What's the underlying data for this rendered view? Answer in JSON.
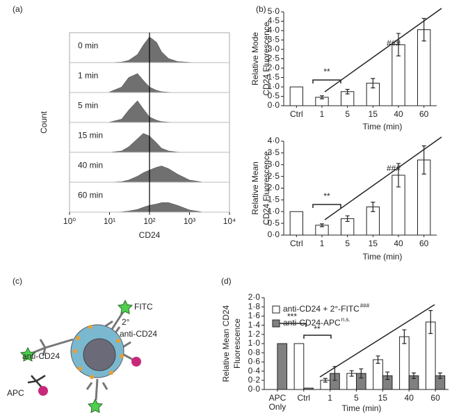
{
  "panels": [
    "(a)",
    "(b)",
    "(c)",
    "(d)"
  ],
  "diagram": {
    "labels": [
      "FITC",
      "2°",
      "anti-CD24",
      "anti-CD24",
      "APC"
    ]
  },
  "chart_data": [
    {
      "type": "ridgeline",
      "xlabel": "CD24",
      "ylabel": "Count",
      "log_x": true,
      "xlim": [
        1,
        10000
      ],
      "xticks": [
        {
          "value": 1,
          "label": "10⁰"
        },
        {
          "value": 10,
          "label": "10¹"
        },
        {
          "value": 100,
          "label": "10²"
        },
        {
          "value": 1000,
          "label": "10³"
        },
        {
          "value": 10000,
          "label": "10⁴"
        }
      ],
      "vline": 100,
      "ylim": [
        0,
        100
      ],
      "color": "#707070",
      "x": [
        10,
        20,
        30,
        50,
        70,
        100,
        150,
        200,
        300,
        500,
        1000,
        2000
      ],
      "series": [
        {
          "name": "0 min",
          "values": [
            0,
            2,
            8,
            30,
            65,
            95,
            75,
            40,
            15,
            4,
            1,
            0
          ]
        },
        {
          "name": "1 min",
          "values": [
            2,
            20,
            55,
            70,
            45,
            20,
            8,
            3,
            1,
            0,
            0,
            0
          ]
        },
        {
          "name": "5 min",
          "values": [
            1,
            12,
            45,
            80,
            50,
            20,
            8,
            3,
            1,
            0,
            0,
            0
          ]
        },
        {
          "name": "15 min",
          "values": [
            0,
            5,
            20,
            50,
            70,
            60,
            35,
            15,
            5,
            1,
            0,
            0
          ]
        },
        {
          "name": "40 min",
          "values": [
            0,
            2,
            8,
            22,
            35,
            45,
            55,
            60,
            50,
            30,
            8,
            1
          ]
        },
        {
          "name": "60 min",
          "values": [
            0,
            1,
            4,
            10,
            18,
            25,
            30,
            35,
            35,
            25,
            8,
            1
          ]
        }
      ]
    },
    {
      "type": "bar",
      "ylabel": [
        "Relative Mode",
        "CD24 Fluorescence"
      ],
      "xlabel": "Time (min)",
      "categories": [
        "Ctrl",
        "1",
        "5",
        "15",
        "40",
        "60"
      ],
      "series": [
        {
          "color": "#ffffff",
          "values": [
            1.0,
            0.45,
            0.75,
            1.2,
            3.25,
            4.05
          ],
          "errors": [
            0,
            0.08,
            0.12,
            0.25,
            0.6,
            0.6
          ]
        }
      ],
      "ylim": [
        0,
        5
      ],
      "yticks": [
        {
          "value": 0,
          "label": "0·0"
        },
        {
          "value": 0.5,
          "label": "0·5"
        },
        {
          "value": 1,
          "label": "1·0"
        },
        {
          "value": 1.5,
          "label": "1·5"
        },
        {
          "value": 2,
          "label": "2·0"
        },
        {
          "value": 2.5,
          "label": "2·5"
        },
        {
          "value": 3,
          "label": "3·0"
        },
        {
          "value": 3.5,
          "label": "3·5"
        },
        {
          "value": 4,
          "label": "4·0"
        },
        {
          "value": 4.5,
          "label": "4·5"
        },
        {
          "value": 5,
          "label": "5·0"
        }
      ],
      "annotations": [
        "**",
        "###"
      ]
    },
    {
      "type": "bar",
      "ylabel": [
        "Relative Mean",
        "CD24 Fluorescence"
      ],
      "xlabel": "Time (min)",
      "categories": [
        "Ctrl",
        "1",
        "5",
        "15",
        "40",
        "60"
      ],
      "series": [
        {
          "color": "#ffffff",
          "values": [
            1.0,
            0.42,
            0.7,
            1.2,
            2.55,
            3.2
          ],
          "errors": [
            0,
            0.06,
            0.12,
            0.2,
            0.5,
            0.6
          ]
        }
      ],
      "ylim": [
        0,
        4
      ],
      "yticks": [
        {
          "value": 0,
          "label": "0·0"
        },
        {
          "value": 0.5,
          "label": "0·5"
        },
        {
          "value": 1,
          "label": "1·0"
        },
        {
          "value": 1.5,
          "label": "1·5"
        },
        {
          "value": 2,
          "label": "2·0"
        },
        {
          "value": 2.5,
          "label": "2·5"
        },
        {
          "value": 3,
          "label": "3·0"
        },
        {
          "value": 3.5,
          "label": "3·5"
        },
        {
          "value": 4,
          "label": "4·0"
        }
      ],
      "annotations": [
        "**",
        "###"
      ]
    },
    {
      "type": "bar",
      "ylabel": [
        "Relative Mean CD24",
        "Fluorescence"
      ],
      "xlabel": "Time (min)",
      "categories": [
        "APC Only",
        "Ctrl",
        "1",
        "5",
        "15",
        "40",
        "60"
      ],
      "series": [
        {
          "name": "anti-CD24 + 2°-FITC",
          "name_sup": "###",
          "color": "#ffffff",
          "values": [
            null,
            1.0,
            0.2,
            0.35,
            0.65,
            1.15,
            1.47
          ],
          "errors": [
            null,
            0,
            0.04,
            0.06,
            0.08,
            0.15,
            0.25
          ]
        },
        {
          "name": "anti-CD24-APC",
          "name_sup": "n.s.",
          "color": "#808080",
          "values": [
            1.0,
            0.03,
            0.35,
            0.35,
            0.3,
            0.3,
            0.3
          ],
          "errors": [
            0,
            0,
            0.15,
            0.1,
            0.08,
            0.06,
            0.06
          ]
        }
      ],
      "ylim": [
        0,
        2
      ],
      "yticks": [
        {
          "value": 0,
          "label": "0·0"
        },
        {
          "value": 0.2,
          "label": "0·2"
        },
        {
          "value": 0.4,
          "label": "0·4"
        },
        {
          "value": 0.6,
          "label": "0·6"
        },
        {
          "value": 0.8,
          "label": "0·8"
        },
        {
          "value": 1,
          "label": "1·0"
        },
        {
          "value": 1.2,
          "label": "1·2"
        },
        {
          "value": 1.4,
          "label": "1·4"
        },
        {
          "value": 1.6,
          "label": "1·6"
        },
        {
          "value": 1.8,
          "label": "1·8"
        },
        {
          "value": 2,
          "label": "2·0"
        }
      ],
      "annotations": [
        "***",
        "**"
      ]
    }
  ]
}
